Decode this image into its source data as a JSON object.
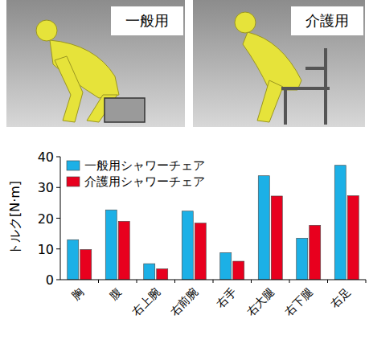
{
  "chart_data": {
    "type": "bar",
    "annotations": [
      "一般用",
      "介護用"
    ],
    "y_label": "トルク[N·m]",
    "categories": [
      "胸",
      "腹",
      "右上腕",
      "右前腕",
      "右手",
      "右大腿",
      "右下腿",
      "右足"
    ],
    "series": [
      {
        "name": "一般用シャワーチェア",
        "color": "#1cb0e6",
        "values": [
          13,
          22.7,
          5.2,
          22.3,
          8.8,
          33.8,
          13.5,
          37.2
        ]
      },
      {
        "name": "介護用シャワーチェア",
        "color": "#e8001e",
        "values": [
          9.8,
          19,
          3.5,
          18.4,
          6,
          27.2,
          17.7,
          27.3
        ]
      }
    ],
    "ylim": [
      0,
      40
    ],
    "yticks": [
      0,
      10,
      20,
      30,
      40
    ],
    "grid": false,
    "legend": "upper left"
  }
}
